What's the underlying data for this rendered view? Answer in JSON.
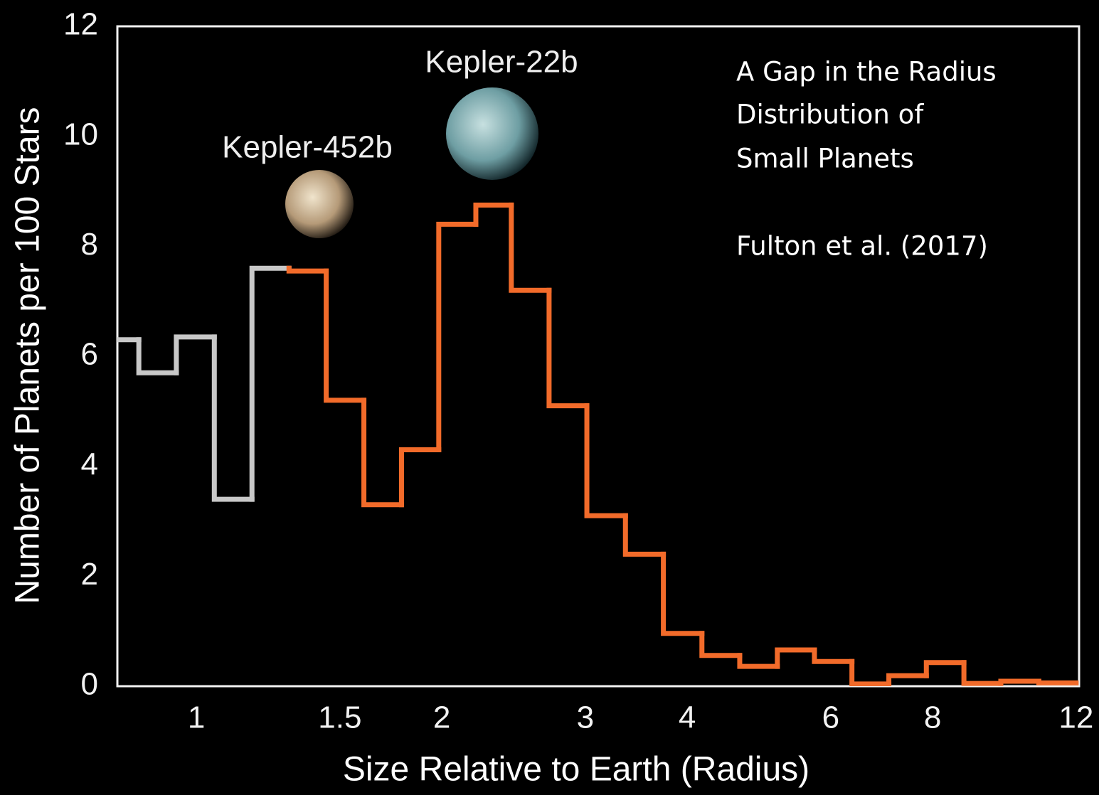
{
  "chart_data": {
    "type": "histogram",
    "xlabel": "Size Relative to Earth (Radius)",
    "ylabel": "Number of Planets per 100 Stars",
    "bins": [
      0.8,
      0.85,
      0.945,
      1.052,
      1.17,
      1.299,
      1.443,
      1.605,
      1.785,
      1.983,
      2.202,
      2.434,
      2.708,
      3.013,
      3.36,
      3.74,
      4.17,
      4.64,
      5.16,
      5.73,
      6.37,
      7.07,
      7.86,
      8.74,
      9.7,
      10.8,
      12.0
    ],
    "counts": [
      6.3,
      5.7,
      6.35,
      3.4,
      7.6,
      7.55,
      5.2,
      3.3,
      4.3,
      8.4,
      8.75,
      7.2,
      5.1,
      3.1,
      2.4,
      0.96,
      0.56,
      0.36,
      0.66,
      0.45,
      0.04,
      0.19,
      0.43,
      0.05,
      0.09,
      0.06
    ],
    "colors": [
      "#c8c8c8",
      "#c8c8c8",
      "#c8c8c8",
      "#c8c8c8",
      "#c8c8c8",
      "#f26b2a",
      "#f26b2a",
      "#f26b2a",
      "#f26b2a",
      "#f26b2a",
      "#f26b2a",
      "#f26b2a",
      "#f26b2a",
      "#f26b2a",
      "#f26b2a",
      "#f26b2a",
      "#f26b2a",
      "#f26b2a",
      "#f26b2a",
      "#f26b2a",
      "#f26b2a",
      "#f26b2a",
      "#f26b2a",
      "#f26b2a",
      "#f26b2a",
      "#f26b2a"
    ],
    "xscale": "log",
    "xlim": [
      0.8,
      12.1
    ],
    "xticks": [
      1,
      1.5,
      2,
      3,
      4,
      6,
      8,
      12
    ],
    "ylim": [
      0,
      12
    ],
    "yticks": [
      0,
      2,
      4,
      6,
      8,
      10,
      12
    ],
    "annotations": [
      "Kepler-452b",
      "Kepler-22b"
    ],
    "note_lines": [
      "A Gap in the Radius",
      "Distribution of",
      "Small Planets",
      "Fulton et al. (2017)"
    ]
  }
}
